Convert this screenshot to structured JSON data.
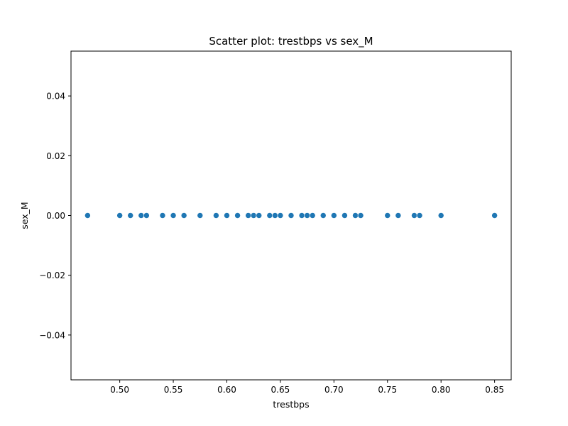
{
  "chart_data": {
    "type": "scatter",
    "title": "Scatter plot: trestbps vs sex_M",
    "xlabel": "trestbps",
    "ylabel": "sex_M",
    "xlim": [
      0.4545,
      0.8655
    ],
    "ylim": [
      -0.055,
      0.055
    ],
    "x_ticks": [
      0.5,
      0.55,
      0.6,
      0.65,
      0.7,
      0.75,
      0.8,
      0.85
    ],
    "x_tick_labels": [
      "0.50",
      "0.55",
      "0.60",
      "0.65",
      "0.70",
      "0.75",
      "0.80",
      "0.85"
    ],
    "y_ticks": [
      -0.04,
      -0.02,
      0.0,
      0.02,
      0.04
    ],
    "y_tick_labels": [
      "−0.04",
      "−0.02",
      "0.00",
      "0.02",
      "0.04"
    ],
    "grid": false,
    "marker_color": "#1f77b4",
    "series": [
      {
        "x": [
          0.47,
          0.5,
          0.51,
          0.52,
          0.525,
          0.54,
          0.55,
          0.56,
          0.575,
          0.59,
          0.6,
          0.61,
          0.62,
          0.625,
          0.63,
          0.64,
          0.645,
          0.65,
          0.66,
          0.67,
          0.675,
          0.68,
          0.69,
          0.7,
          0.71,
          0.72,
          0.725,
          0.75,
          0.76,
          0.775,
          0.78,
          0.8,
          0.85
        ],
        "y": [
          0,
          0,
          0,
          0,
          0,
          0,
          0,
          0,
          0,
          0,
          0,
          0,
          0,
          0,
          0,
          0,
          0,
          0,
          0,
          0,
          0,
          0,
          0,
          0,
          0,
          0,
          0,
          0,
          0,
          0,
          0,
          0,
          0
        ]
      }
    ]
  }
}
